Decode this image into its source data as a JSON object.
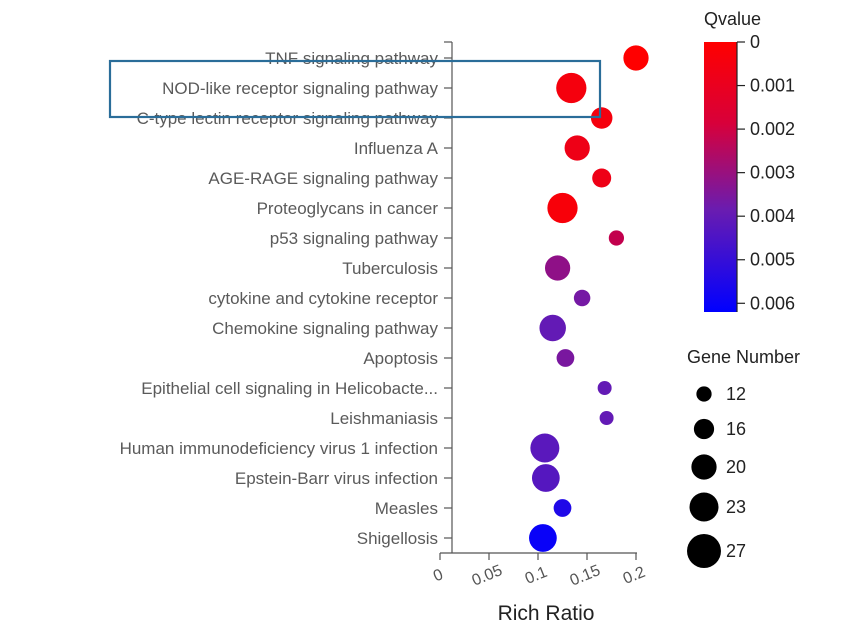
{
  "chart_data": {
    "type": "scatter",
    "xlabel": "Rich Ratio",
    "xticks": [
      "0",
      "0.05",
      "0.1",
      "0.15",
      "0.2"
    ],
    "xlim": [
      0,
      0.2
    ],
    "terms": [
      {
        "term": "TNF signaling pathway",
        "rich_ratio": 0.2,
        "qvalue": 0.0,
        "gene_number": 20
      },
      {
        "term": "NOD-like receptor signaling pathway",
        "rich_ratio": 0.134,
        "qvalue": 0.0003,
        "gene_number": 24
      },
      {
        "term": "C-type lectin receptor signaling pathway",
        "rich_ratio": 0.165,
        "qvalue": 0.0003,
        "gene_number": 17
      },
      {
        "term": "Influenza A",
        "rich_ratio": 0.14,
        "qvalue": 0.0005,
        "gene_number": 20
      },
      {
        "term": "AGE-RAGE signaling pathway",
        "rich_ratio": 0.165,
        "qvalue": 0.0005,
        "gene_number": 15
      },
      {
        "term": "Proteoglycans in cancer",
        "rich_ratio": 0.125,
        "qvalue": 0.0002,
        "gene_number": 24
      },
      {
        "term": "p53 signaling pathway",
        "rich_ratio": 0.18,
        "qvalue": 0.0018,
        "gene_number": 12
      },
      {
        "term": "Tuberculosis",
        "rich_ratio": 0.12,
        "qvalue": 0.003,
        "gene_number": 20
      },
      {
        "term": "cytokine and cytokine receptor",
        "rich_ratio": 0.145,
        "qvalue": 0.0036,
        "gene_number": 13
      },
      {
        "term": "Chemokine signaling pathway",
        "rich_ratio": 0.115,
        "qvalue": 0.004,
        "gene_number": 21
      },
      {
        "term": "Apoptosis",
        "rich_ratio": 0.128,
        "qvalue": 0.0035,
        "gene_number": 14
      },
      {
        "term": "Epithelial cell signaling in Helicobacte...",
        "rich_ratio": 0.168,
        "qvalue": 0.004,
        "gene_number": 11
      },
      {
        "term": "Leishmaniasis",
        "rich_ratio": 0.17,
        "qvalue": 0.004,
        "gene_number": 11
      },
      {
        "term": "Human immunodeficiency virus 1 infection",
        "rich_ratio": 0.107,
        "qvalue": 0.0042,
        "gene_number": 23
      },
      {
        "term": "Epstein-Barr virus infection",
        "rich_ratio": 0.108,
        "qvalue": 0.0043,
        "gene_number": 22
      },
      {
        "term": "Measles",
        "rich_ratio": 0.125,
        "qvalue": 0.0055,
        "gene_number": 14
      },
      {
        "term": "Shigellosis",
        "rich_ratio": 0.105,
        "qvalue": 0.006,
        "gene_number": 22
      }
    ],
    "highlighted_term": "NOD-like receptor signaling pathway",
    "highlight_color": "#2a6d99",
    "legend_color": {
      "title": "Qvalue",
      "ticks": [
        "0",
        "0.001",
        "0.002",
        "0.003",
        "0.004",
        "0.005",
        "0.006"
      ],
      "range": [
        0,
        0.0062
      ],
      "colors": [
        "#ff0000",
        "#c00050",
        "#6a1cb0",
        "#0000ff"
      ],
      "placement": "top-right"
    },
    "legend_size": {
      "title": "Gene Number",
      "values": [
        "12",
        "16",
        "20",
        "23",
        "27"
      ],
      "placement": "right"
    },
    "grid": false
  }
}
